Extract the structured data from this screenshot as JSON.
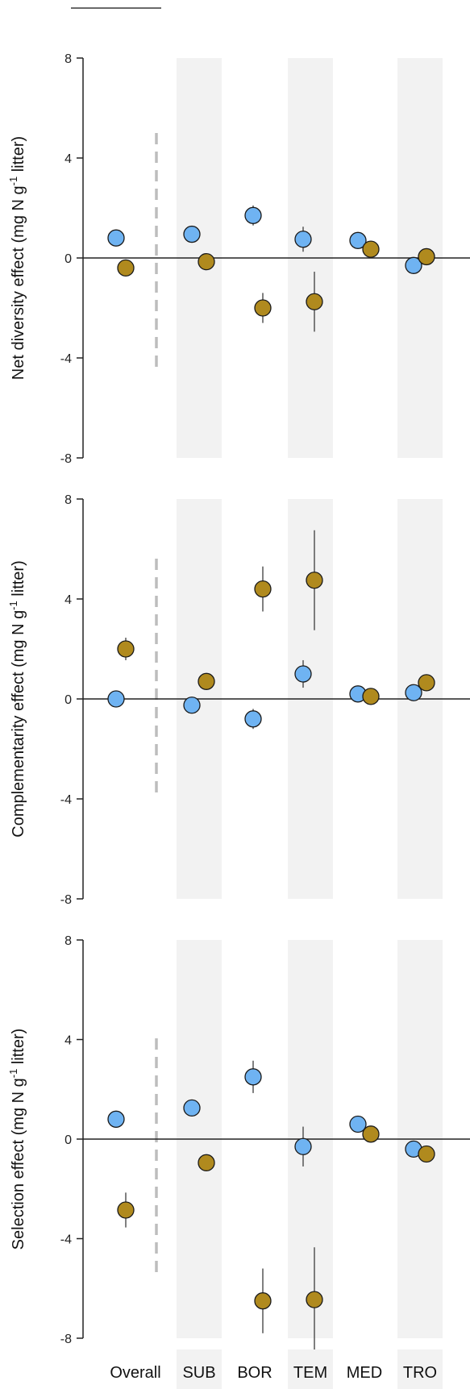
{
  "colors": {
    "blue": "#6fb3f2",
    "brown": "#b08a1e",
    "band": "#f2f2f2",
    "dashed": "#bdbdbd",
    "axis": "#222222",
    "errorbar": "#555555"
  },
  "categories": [
    "Overall",
    "SUB",
    "BOR",
    "TEM",
    "MED",
    "TRO"
  ],
  "ylabel_superscript": "-1",
  "chart_data": [
    {
      "type": "scatter",
      "ylabel_prefix": "Net diversity effect (mg N g",
      "ylabel_suffix": " litter)",
      "ylim": [
        -8,
        8
      ],
      "yticks": [
        -8,
        -4,
        0,
        4,
        8
      ],
      "categories": [
        "Overall",
        "SUB",
        "BOR",
        "TEM",
        "MED",
        "TRO"
      ],
      "series": [
        {
          "color": "blue",
          "values": [
            0.8,
            0.95,
            1.7,
            0.75,
            0.7,
            -0.3
          ],
          "err": [
            0.15,
            0.15,
            0.4,
            0.5,
            0.2,
            0.1
          ]
        },
        {
          "color": "brown",
          "values": [
            -0.4,
            -0.15,
            -2.0,
            -1.75,
            0.35,
            0.05
          ],
          "err": [
            0.1,
            0.1,
            0.6,
            1.2,
            0.1,
            0.05
          ]
        }
      ]
    },
    {
      "type": "scatter",
      "ylabel_prefix": "Complementarity effect (mg N g",
      "ylabel_suffix": " litter)",
      "ylim": [
        -8,
        8
      ],
      "yticks": [
        -8,
        -4,
        0,
        4,
        8
      ],
      "categories": [
        "Overall",
        "SUB",
        "BOR",
        "TEM",
        "MED",
        "TRO"
      ],
      "series": [
        {
          "color": "blue",
          "values": [
            0.0,
            -0.25,
            -0.8,
            1.0,
            0.2,
            0.25
          ],
          "err": [
            0.1,
            0.1,
            0.4,
            0.55,
            0.1,
            0.1
          ]
        },
        {
          "color": "brown",
          "values": [
            2.0,
            0.7,
            4.4,
            4.75,
            0.1,
            0.65
          ],
          "err": [
            0.45,
            0.1,
            0.9,
            2.0,
            0.1,
            0.1
          ]
        }
      ]
    },
    {
      "type": "scatter",
      "ylabel_prefix": "Selection effect (mg N g",
      "ylabel_suffix": " litter)",
      "ylim": [
        -8,
        8
      ],
      "yticks": [
        -8,
        -4,
        0,
        4,
        8
      ],
      "categories": [
        "Overall",
        "SUB",
        "BOR",
        "TEM",
        "MED",
        "TRO"
      ],
      "series": [
        {
          "color": "blue",
          "values": [
            0.8,
            1.25,
            2.5,
            -0.3,
            0.6,
            -0.4
          ],
          "err": [
            0.1,
            0.1,
            0.65,
            0.8,
            0.1,
            0.1
          ]
        },
        {
          "color": "brown",
          "values": [
            -2.85,
            -0.95,
            -6.5,
            -6.45,
            0.2,
            -0.6
          ],
          "err": [
            0.7,
            0.1,
            1.3,
            2.1,
            0.1,
            0.1
          ]
        }
      ]
    }
  ]
}
